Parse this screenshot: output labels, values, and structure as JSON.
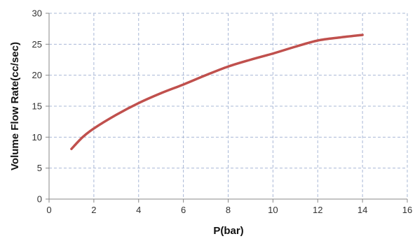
{
  "chart_data": {
    "type": "line",
    "title": "",
    "xlabel": "P(bar)",
    "ylabel": "Volume Flow Rate(cc/sec)",
    "xlim": [
      0,
      16
    ],
    "ylim": [
      0,
      30
    ],
    "x_ticks": [
      0,
      2,
      4,
      6,
      8,
      10,
      12,
      14,
      16
    ],
    "y_ticks": [
      0,
      5,
      10,
      15,
      20,
      25,
      30
    ],
    "x_tick_labels": [
      "0",
      "2",
      "4",
      "6",
      "8",
      "10",
      "12",
      "14",
      "16"
    ],
    "y_tick_labels": [
      "0",
      "5",
      "10",
      "15",
      "20",
      "25",
      "30"
    ],
    "grid": true,
    "legend": "none",
    "series": [
      {
        "color": "#c0504d",
        "x": [
          1,
          1.5,
          2,
          3,
          4,
          5,
          6,
          7,
          8,
          9,
          10,
          11,
          12,
          13,
          14
        ],
        "y": [
          8.1,
          10.0,
          11.4,
          13.6,
          15.5,
          17.1,
          18.5,
          20.0,
          21.4,
          22.5,
          23.5,
          24.6,
          25.6,
          26.1,
          26.5
        ]
      }
    ],
    "colors": {
      "line": "#c0504d",
      "grid": "#a9b8d6",
      "axis": "#888888",
      "plot_border": "#c0c0c0"
    }
  }
}
